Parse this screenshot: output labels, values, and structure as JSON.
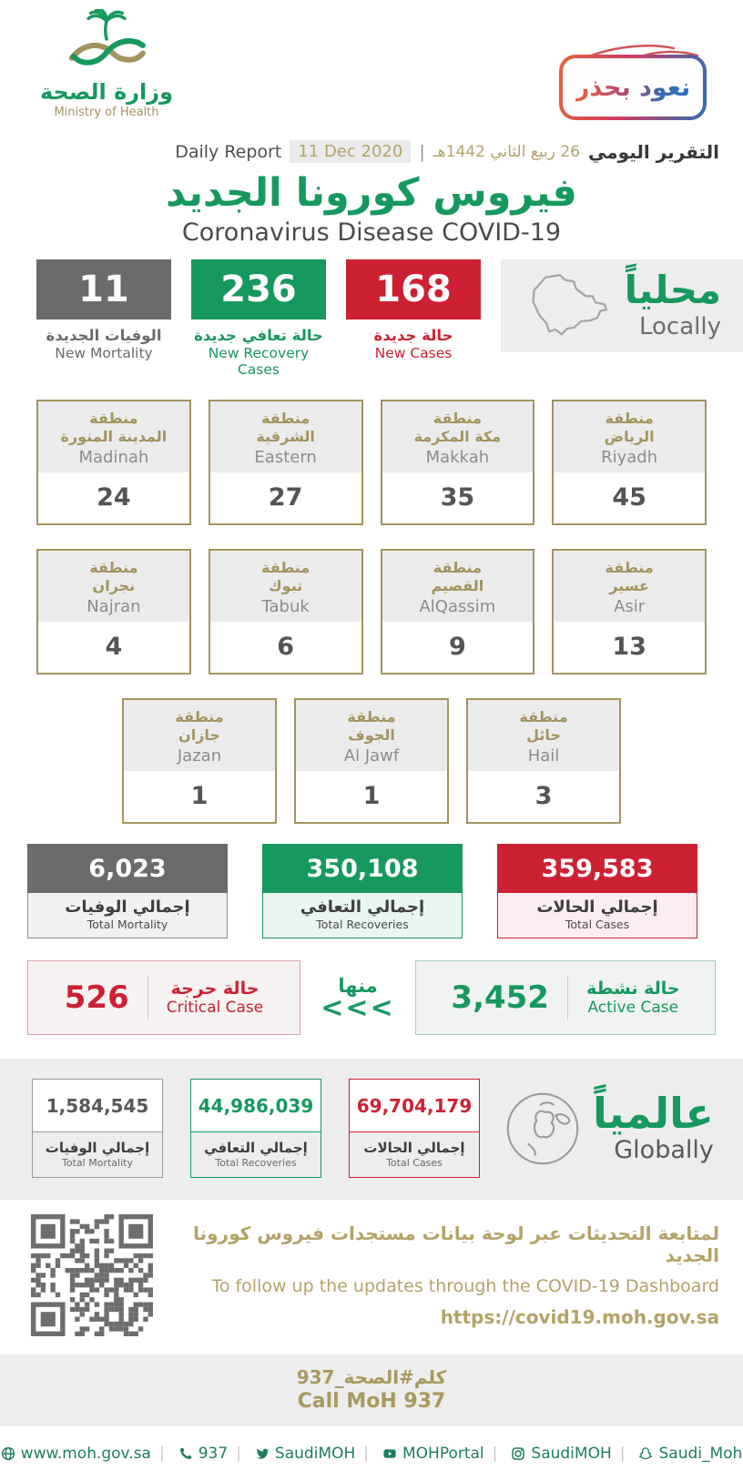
{
  "colors": {
    "green": "#17985f",
    "red": "#cd2133",
    "gray": "#6b6b6e",
    "gold": "#a3945f",
    "badge_gradient_start": "#e2653f",
    "badge_gradient_end": "#2f6eb5"
  },
  "header": {
    "logo_ar": "وزارة الصحة",
    "logo_en": "Ministry of Health",
    "badge_text": "نعود بحذر",
    "report_en": "Daily Report",
    "report_date_en": "11 Dec 2020",
    "report_sep": "|",
    "report_date_hijri": "26 ربيع الثاني 1442هـ",
    "report_ar": "التقرير اليومي",
    "title_ar": "فيروس كورونا الجديد",
    "title_en": "Coronavirus Disease COVID-19"
  },
  "locally": {
    "label_ar": "محلياً",
    "label_en": "Locally",
    "new_mortality": {
      "value": "11",
      "label_ar": "الوفيات الجديدة",
      "label_en": "New Mortality"
    },
    "new_recoveries": {
      "value": "236",
      "label_ar": "حالة تعافي جديدة",
      "label_en": "New Recovery Cases"
    },
    "new_cases": {
      "value": "168",
      "label_ar": "حالة جديدة",
      "label_en": "New Cases"
    }
  },
  "regions": [
    {
      "name_ar": "منطقة\nالمدينة المنورة",
      "name_en": "Madinah",
      "value": "24"
    },
    {
      "name_ar": "منطقة\nالشرقية",
      "name_en": "Eastern",
      "value": "27"
    },
    {
      "name_ar": "منطقة\nمكة المكرمة",
      "name_en": "Makkah",
      "value": "35"
    },
    {
      "name_ar": "منطقة\nالرياض",
      "name_en": "Riyadh",
      "value": "45"
    },
    {
      "name_ar": "منطقة\nنجران",
      "name_en": "Najran",
      "value": "4"
    },
    {
      "name_ar": "منطقة\nتبوك",
      "name_en": "Tabuk",
      "value": "6"
    },
    {
      "name_ar": "منطقة\nالقصيم",
      "name_en": "AlQassim",
      "value": "9"
    },
    {
      "name_ar": "منطقة\nعسير",
      "name_en": "Asir",
      "value": "13"
    },
    {
      "name_ar": "منطقة\nجازان",
      "name_en": "Jazan",
      "value": "1"
    },
    {
      "name_ar": "منطقة\nالجوف",
      "name_en": "Al Jawf",
      "value": "1"
    },
    {
      "name_ar": "منطقة\nحائل",
      "name_en": "Hail",
      "value": "3"
    }
  ],
  "totals": {
    "mortality": {
      "value": "6,023",
      "label_ar": "إجمالي الوفيات",
      "label_en": "Total Mortality"
    },
    "recoveries": {
      "value": "350,108",
      "label_ar": "إجمالي التعافي",
      "label_en": "Total Recoveries"
    },
    "cases": {
      "value": "359,583",
      "label_ar": "إجمالي الحالات",
      "label_en": "Total Cases"
    }
  },
  "breakdown": {
    "critical": {
      "value": "526",
      "label_ar": "حالة حرجة",
      "label_en": "Critical Case"
    },
    "of_which_ar": "منها",
    "arrows": "<<<",
    "active": {
      "value": "3,452",
      "label_ar": "حالة نشطة",
      "label_en": "Active Case"
    }
  },
  "globally": {
    "label_ar": "عالمياً",
    "label_en": "Globally",
    "mortality": {
      "value": "1,584,545",
      "label_ar": "إجمالي الوفيات",
      "label_en": "Total Mortality"
    },
    "recoveries": {
      "value": "44,986,039",
      "label_ar": "إجمالي التعافي",
      "label_en": "Total Recoveries"
    },
    "cases": {
      "value": "69,704,179",
      "label_ar": "إجمالي الحالات",
      "label_en": "Total Cases"
    }
  },
  "dashboard": {
    "line_ar": "لمتابعة التحديثات عبر لوحة بيانات مستجدات فيروس كورونا الجديد",
    "line_en": "To follow up the updates through the COVID-19 Dashboard",
    "url": "https://covid19.moh.gov.sa"
  },
  "call": {
    "line_ar": "كلم#الصحة_937",
    "line_en": "Call MoH 937"
  },
  "footer": {
    "links": [
      {
        "icon": "globe-icon",
        "label": "www.moh.gov.sa"
      },
      {
        "icon": "phone-icon",
        "label": "937"
      },
      {
        "icon": "twitter-icon",
        "label": "SaudiMOH"
      },
      {
        "icon": "youtube-icon",
        "label": "MOHPortal"
      },
      {
        "icon": "instagram-icon",
        "label": "SaudiMOH"
      },
      {
        "icon": "snapchat-icon",
        "label": "Saudi_Moh"
      }
    ]
  }
}
